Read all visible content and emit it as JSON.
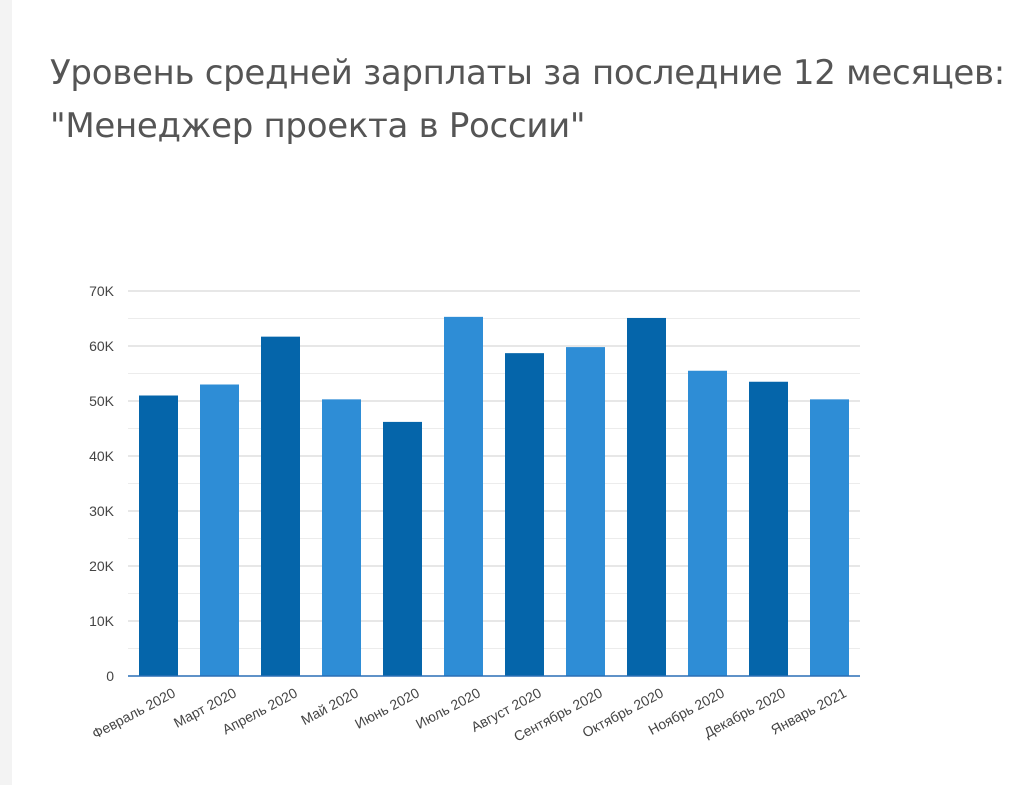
{
  "page": {
    "title_line1": "Уровень средней зарплаты за последние 12 месяцев:",
    "title_line2": "\"Менеджер проекта в России\""
  },
  "colors": {
    "dark_bar": "#0565aa",
    "light_bar": "#2e8dd6",
    "grid": "#d9d9d9",
    "axis": "#2a6fb5",
    "tick_text": "#444444",
    "title": "#555555"
  },
  "chart_data": {
    "type": "bar",
    "title": "Уровень средней зарплаты за последние 12 месяцев: \"Менеджер проекта в России\"",
    "xlabel": "",
    "ylabel": "",
    "ylim": [
      0,
      70000
    ],
    "yticks": [
      0,
      10000,
      20000,
      30000,
      40000,
      50000,
      60000,
      70000
    ],
    "ytick_labels": [
      "0",
      "10K",
      "20K",
      "30K",
      "40K",
      "50K",
      "60K",
      "70K"
    ],
    "grid": true,
    "legend": "none",
    "categories": [
      "Февраль 2020",
      "Март 2020",
      "Апрель 2020",
      "Май 2020",
      "Июнь 2020",
      "Июль 2020",
      "Август 2020",
      "Сентябрь 2020",
      "Октябрь 2020",
      "Ноябрь 2020",
      "Декабрь 2020",
      "Январь 2021"
    ],
    "values": [
      51000,
      53000,
      61700,
      50300,
      46200,
      65300,
      58700,
      59800,
      65100,
      55500,
      53500,
      50300
    ],
    "bar_colors": [
      "#0565aa",
      "#2e8dd6",
      "#0565aa",
      "#2e8dd6",
      "#0565aa",
      "#2e8dd6",
      "#0565aa",
      "#2e8dd6",
      "#0565aa",
      "#2e8dd6",
      "#0565aa",
      "#2e8dd6"
    ]
  }
}
